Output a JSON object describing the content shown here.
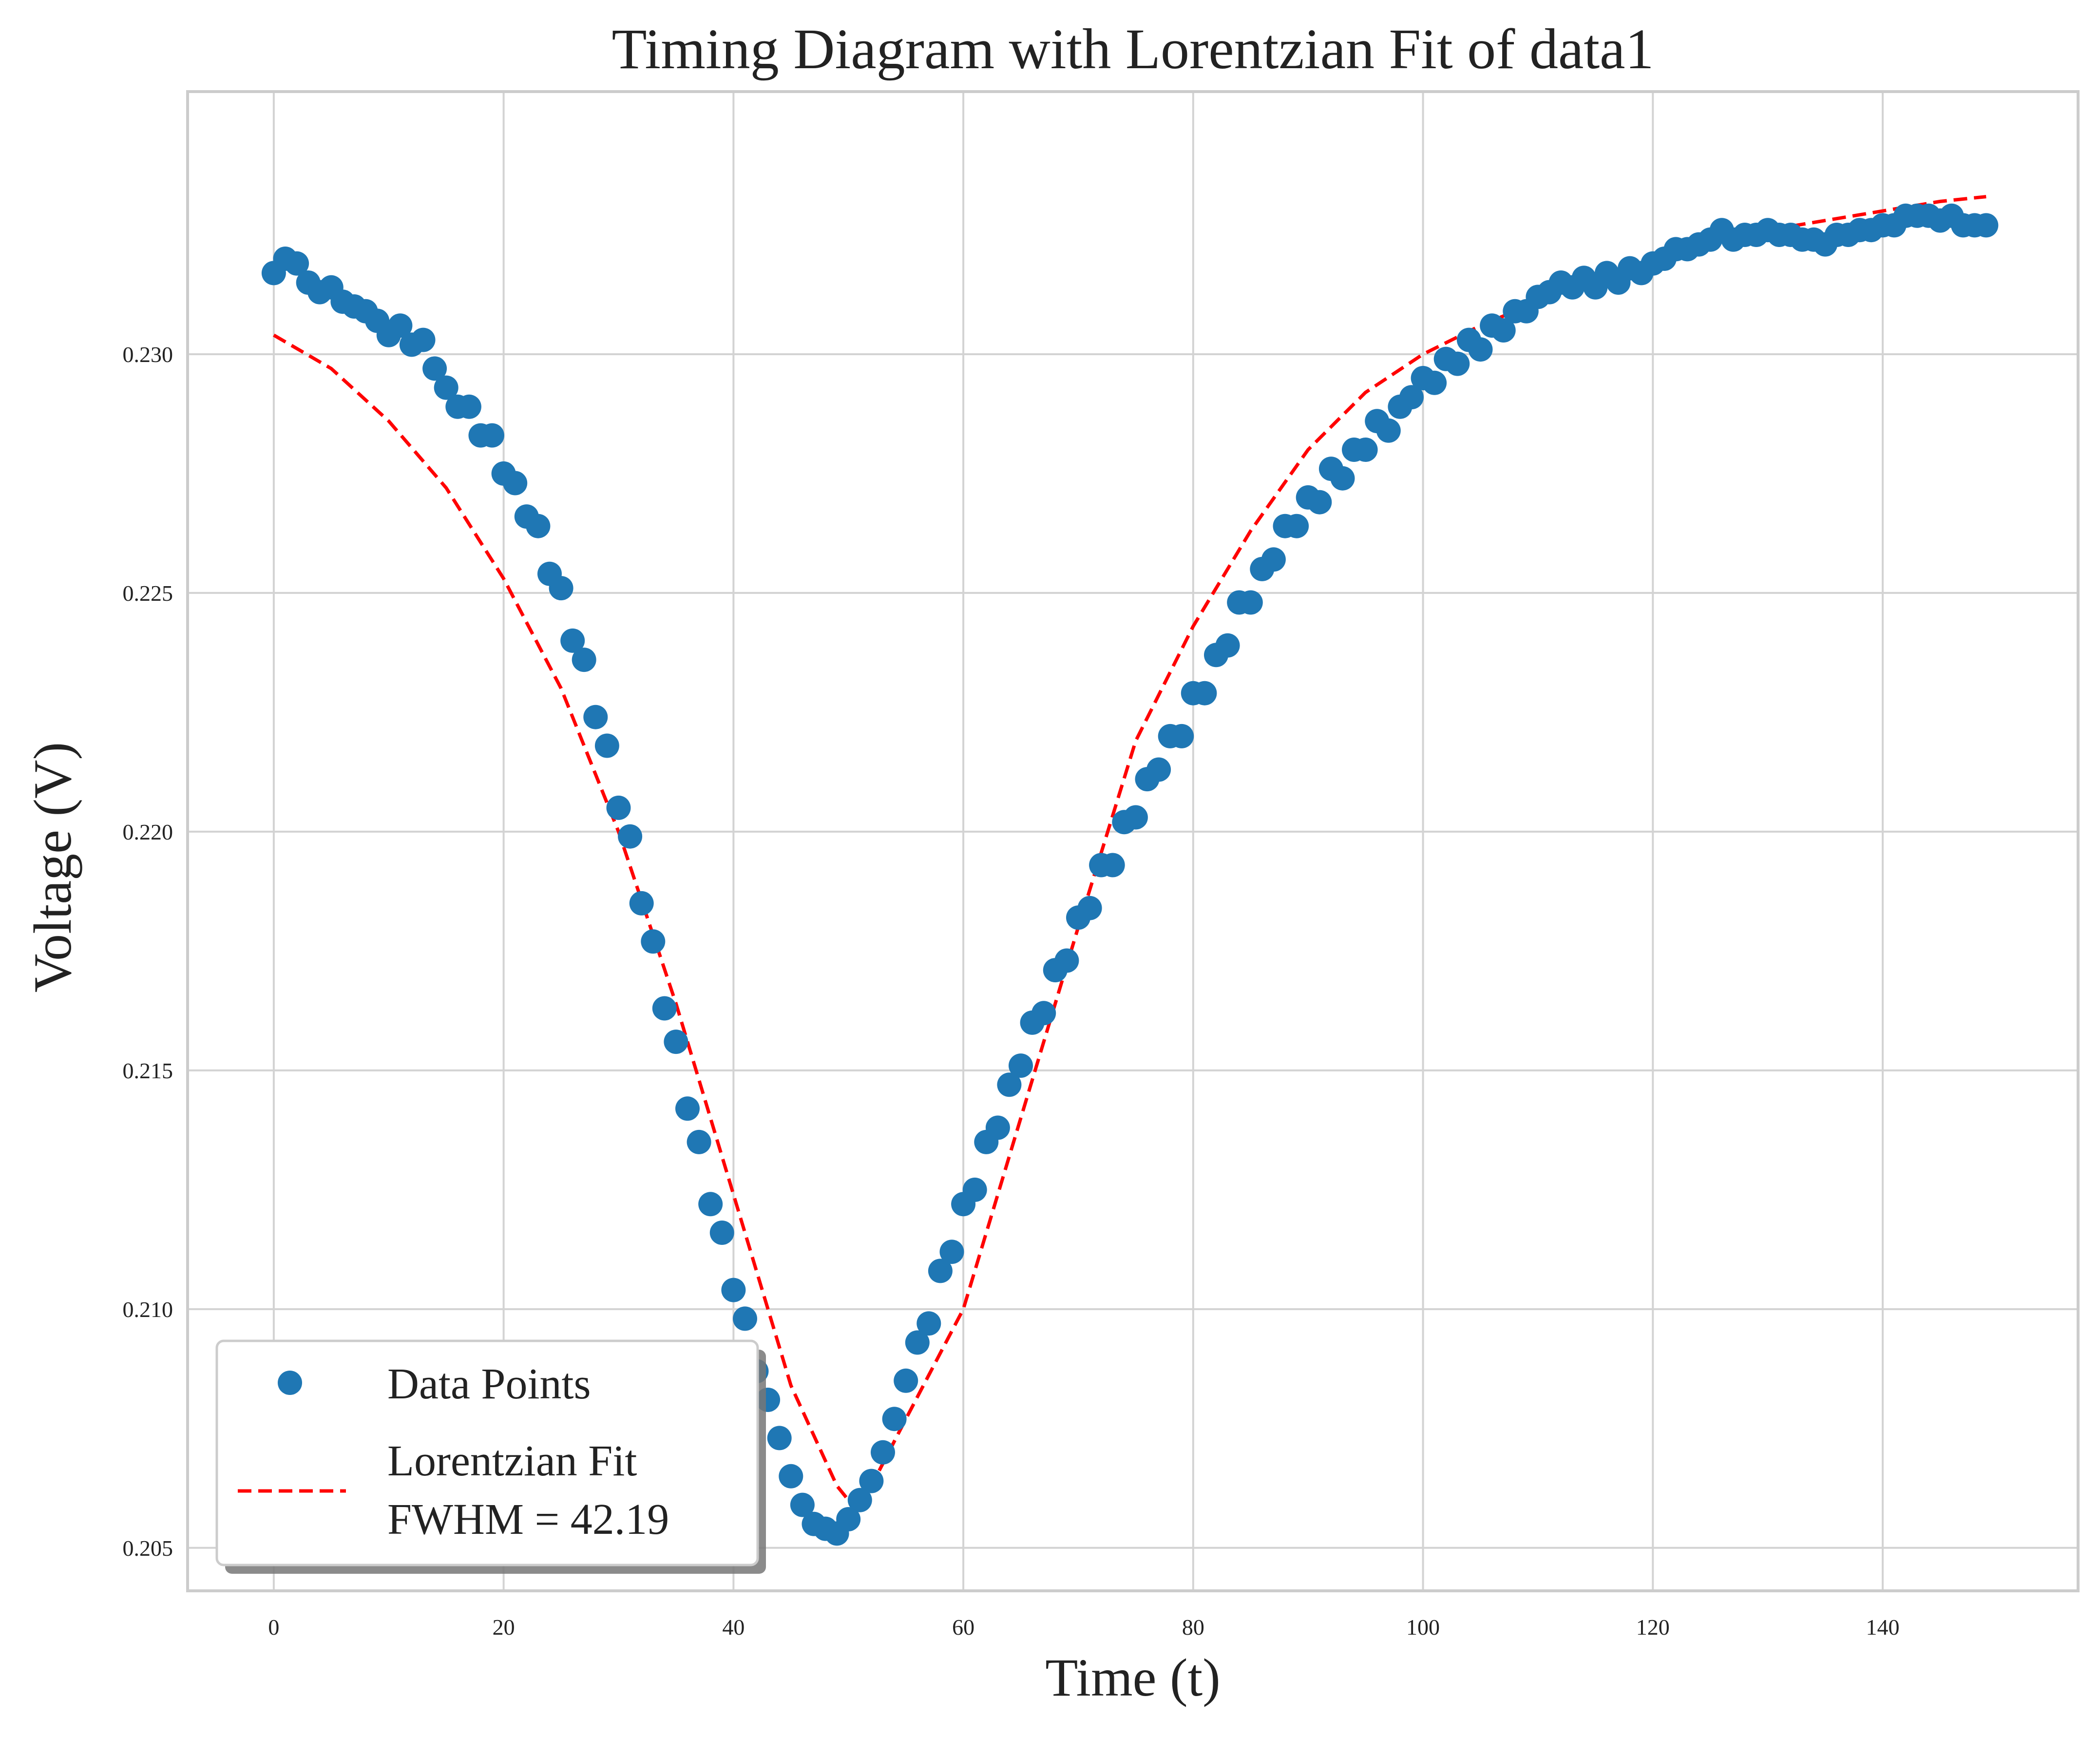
{
  "chart_data": {
    "type": "scatter",
    "title": "Timing Diagram with Lorentzian Fit of data1",
    "xlabel": "Time (t)",
    "ylabel": "Voltage (V)",
    "xlim": [
      -7.5,
      157
    ],
    "ylim": [
      0.2041,
      0.2355
    ],
    "x_ticks": [
      0,
      20,
      40,
      60,
      80,
      100,
      120,
      140
    ],
    "x_tick_labels": [
      "0",
      "20",
      "40",
      "60",
      "80",
      "100",
      "120",
      "140"
    ],
    "y_ticks": [
      0.205,
      0.21,
      0.215,
      0.22,
      0.225,
      0.23
    ],
    "y_tick_labels": [
      "0.205",
      "0.210",
      "0.215",
      "0.220",
      "0.225",
      "0.230"
    ],
    "grid": true,
    "legend_position": "lower-left",
    "colors": {
      "points": "#1f77b4",
      "fit": "#ff0000",
      "grid": "#d3d3d3",
      "frame": "#cccccc"
    },
    "series": [
      {
        "name": "Data Points",
        "type": "scatter",
        "x": [
          0,
          1,
          2,
          3,
          4,
          5,
          6,
          7,
          8,
          9,
          10,
          11,
          12,
          13,
          14,
          15,
          16,
          17,
          18,
          19,
          20,
          21,
          22,
          23,
          24,
          25,
          26,
          27,
          28,
          29,
          30,
          31,
          32,
          33,
          34,
          35,
          36,
          37,
          38,
          39,
          40,
          41,
          42,
          43,
          44,
          45,
          46,
          47,
          48,
          49,
          50,
          51,
          52,
          53,
          54,
          55,
          56,
          57,
          58,
          59,
          60,
          61,
          62,
          63,
          64,
          65,
          66,
          67,
          68,
          69,
          70,
          71,
          72,
          73,
          74,
          75,
          76,
          77,
          78,
          79,
          80,
          81,
          82,
          83,
          84,
          85,
          86,
          87,
          88,
          89,
          90,
          91,
          92,
          93,
          94,
          95,
          96,
          97,
          98,
          99,
          100,
          101,
          102,
          103,
          104,
          105,
          106,
          107,
          108,
          109,
          110,
          111,
          112,
          113,
          114,
          115,
          116,
          117,
          118,
          119,
          120,
          121,
          122,
          123,
          124,
          125,
          126,
          127,
          128,
          129,
          130,
          131,
          132,
          133,
          134,
          135,
          136,
          137,
          138,
          139,
          140,
          141,
          142,
          143,
          144,
          145,
          146,
          147,
          148,
          149
        ],
        "y": [
          0.2317,
          0.232,
          0.2319,
          0.2315,
          0.2313,
          0.2314,
          0.2311,
          0.231,
          0.2309,
          0.2307,
          0.2304,
          0.2306,
          0.2302,
          0.2303,
          0.2297,
          0.2293,
          0.2289,
          0.2289,
          0.2283,
          0.2283,
          0.2275,
          0.2273,
          0.2266,
          0.2264,
          0.2254,
          0.2251,
          0.224,
          0.2236,
          0.2224,
          0.2218,
          0.2205,
          0.2199,
          0.2185,
          0.2177,
          0.2163,
          0.2156,
          0.2142,
          0.2135,
          0.2122,
          0.2116,
          0.2104,
          0.2098,
          0.2087,
          0.2081,
          0.2073,
          0.2065,
          0.2059,
          0.2055,
          0.2054,
          0.2053,
          0.2056,
          0.206,
          0.2064,
          0.207,
          0.2077,
          0.2085,
          0.2093,
          0.2097,
          0.2108,
          0.2112,
          0.2122,
          0.2125,
          0.2135,
          0.2138,
          0.2147,
          0.2151,
          0.216,
          0.2162,
          0.2171,
          0.2173,
          0.2182,
          0.2184,
          0.2193,
          0.2193,
          0.2202,
          0.2203,
          0.2211,
          0.2213,
          0.222,
          0.222,
          0.2229,
          0.2229,
          0.2237,
          0.2239,
          0.2248,
          0.2248,
          0.2255,
          0.2257,
          0.2264,
          0.2264,
          0.227,
          0.2269,
          0.2276,
          0.2274,
          0.228,
          0.228,
          0.2286,
          0.2284,
          0.2289,
          0.2291,
          0.2295,
          0.2294,
          0.2299,
          0.2298,
          0.2303,
          0.2301,
          0.2306,
          0.2305,
          0.2309,
          0.2309,
          0.2312,
          0.2313,
          0.2315,
          0.2314,
          0.2316,
          0.2314,
          0.2317,
          0.2315,
          0.2318,
          0.2317,
          0.2319,
          0.232,
          0.2322,
          0.2322,
          0.2323,
          0.2324,
          0.2326,
          0.2324,
          0.2325,
          0.2325,
          0.2326,
          0.2325,
          0.2325,
          0.2324,
          0.2324,
          0.2323,
          0.2325,
          0.2325,
          0.2326,
          0.2326,
          0.2327,
          0.2327,
          0.2329,
          0.2329,
          0.2329,
          0.2328,
          0.2329,
          0.2327,
          0.2327,
          0.2327
        ]
      },
      {
        "name": "Lorentzian Fit",
        "type": "line",
        "style": "dashed",
        "x": [
          0,
          5,
          10,
          15,
          20,
          25,
          30,
          35,
          40,
          45,
          49,
          50,
          52,
          55,
          60,
          65,
          70,
          75,
          80,
          85,
          90,
          95,
          100,
          105,
          110,
          115,
          120,
          125,
          130,
          135,
          140,
          145,
          149
        ],
        "y": [
          0.2304,
          0.2297,
          0.2286,
          0.2272,
          0.2253,
          0.223,
          0.22,
          0.2164,
          0.2124,
          0.2084,
          0.2063,
          0.206,
          0.2063,
          0.2077,
          0.21,
          0.214,
          0.218,
          0.2219,
          0.2243,
          0.2263,
          0.228,
          0.2292,
          0.23,
          0.2306,
          0.2311,
          0.2316,
          0.232,
          0.2324,
          0.2326,
          0.2328,
          0.233,
          0.2332,
          0.2333
        ]
      }
    ],
    "legend_entries": [
      "Data Points",
      "Lorentzian Fit",
      "FWHM = 42.19"
    ]
  }
}
